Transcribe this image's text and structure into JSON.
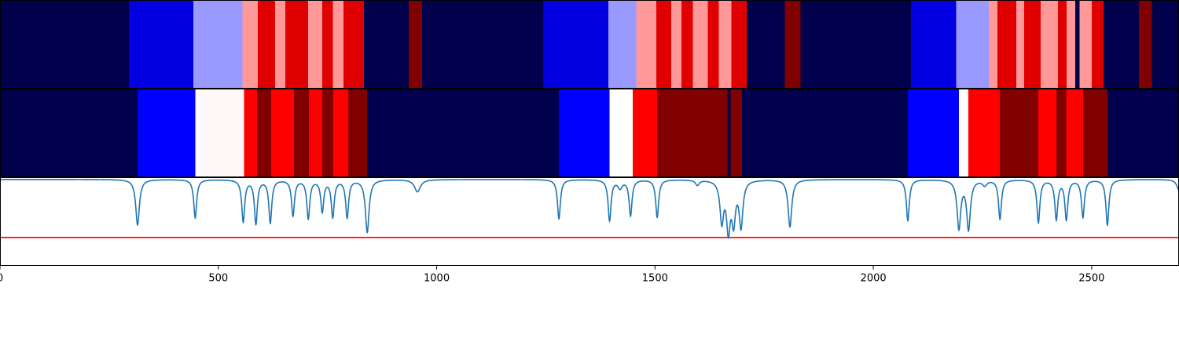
{
  "chart_data": [
    {
      "type": "heatmap",
      "xlim": [
        0,
        2700
      ],
      "segments": [
        {
          "start": 0,
          "end": 295,
          "color": "#00004c"
        },
        {
          "start": 295,
          "end": 443,
          "color": "#0000e0"
        },
        {
          "start": 443,
          "end": 555,
          "color": "#9999ff"
        },
        {
          "start": 555,
          "end": 590,
          "color": "#ff9999"
        },
        {
          "start": 590,
          "end": 630,
          "color": "#e00000"
        },
        {
          "start": 630,
          "end": 653,
          "color": "#ff9999"
        },
        {
          "start": 653,
          "end": 706,
          "color": "#e00000"
        },
        {
          "start": 706,
          "end": 738,
          "color": "#ff9999"
        },
        {
          "start": 738,
          "end": 762,
          "color": "#e00000"
        },
        {
          "start": 762,
          "end": 787,
          "color": "#ff9999"
        },
        {
          "start": 787,
          "end": 833,
          "color": "#e00000"
        },
        {
          "start": 833,
          "end": 936,
          "color": "#00004c"
        },
        {
          "start": 936,
          "end": 967,
          "color": "#800000"
        },
        {
          "start": 967,
          "end": 1244,
          "color": "#00004c"
        },
        {
          "start": 1244,
          "end": 1393,
          "color": "#0000e0"
        },
        {
          "start": 1393,
          "end": 1457,
          "color": "#9999ff"
        },
        {
          "start": 1457,
          "end": 1503,
          "color": "#ff9999"
        },
        {
          "start": 1503,
          "end": 1537,
          "color": "#e00000"
        },
        {
          "start": 1537,
          "end": 1561,
          "color": "#ff9999"
        },
        {
          "start": 1561,
          "end": 1587,
          "color": "#e00000"
        },
        {
          "start": 1587,
          "end": 1621,
          "color": "#ff9999"
        },
        {
          "start": 1621,
          "end": 1646,
          "color": "#e00000"
        },
        {
          "start": 1646,
          "end": 1675,
          "color": "#ff9999"
        },
        {
          "start": 1675,
          "end": 1710,
          "color": "#e00000"
        },
        {
          "start": 1710,
          "end": 1797,
          "color": "#00004c"
        },
        {
          "start": 1797,
          "end": 1833,
          "color": "#800000"
        },
        {
          "start": 1833,
          "end": 2086,
          "color": "#00004c"
        },
        {
          "start": 2086,
          "end": 2190,
          "color": "#0000e0"
        },
        {
          "start": 2190,
          "end": 2264,
          "color": "#9999ff"
        },
        {
          "start": 2264,
          "end": 2284,
          "color": "#ff9999"
        },
        {
          "start": 2284,
          "end": 2327,
          "color": "#e00000"
        },
        {
          "start": 2327,
          "end": 2345,
          "color": "#ff9999"
        },
        {
          "start": 2345,
          "end": 2383,
          "color": "#e00000"
        },
        {
          "start": 2383,
          "end": 2423,
          "color": "#ff9999"
        },
        {
          "start": 2423,
          "end": 2443,
          "color": "#e00000"
        },
        {
          "start": 2443,
          "end": 2462,
          "color": "#ff9999"
        },
        {
          "start": 2462,
          "end": 2472,
          "color": "#00004c"
        },
        {
          "start": 2472,
          "end": 2500,
          "color": "#ff9999"
        },
        {
          "start": 2500,
          "end": 2527,
          "color": "#e00000"
        },
        {
          "start": 2527,
          "end": 2608,
          "color": "#00004c"
        },
        {
          "start": 2608,
          "end": 2638,
          "color": "#800000"
        },
        {
          "start": 2638,
          "end": 2700,
          "color": "#00004c"
        }
      ]
    },
    {
      "type": "heatmap",
      "xlim": [
        0,
        2700
      ],
      "segments": [
        {
          "start": 0,
          "end": 315,
          "color": "#00004c"
        },
        {
          "start": 315,
          "end": 447,
          "color": "#0000ff"
        },
        {
          "start": 447,
          "end": 559,
          "color": "#fff8f8"
        },
        {
          "start": 559,
          "end": 589,
          "color": "#ff0000"
        },
        {
          "start": 589,
          "end": 621,
          "color": "#800000"
        },
        {
          "start": 621,
          "end": 673,
          "color": "#ff0000"
        },
        {
          "start": 673,
          "end": 707,
          "color": "#800000"
        },
        {
          "start": 707,
          "end": 738,
          "color": "#ff0000"
        },
        {
          "start": 738,
          "end": 763,
          "color": "#800000"
        },
        {
          "start": 763,
          "end": 797,
          "color": "#ff0000"
        },
        {
          "start": 797,
          "end": 841,
          "color": "#800000"
        },
        {
          "start": 841,
          "end": 1280,
          "color": "#00004c"
        },
        {
          "start": 1280,
          "end": 1396,
          "color": "#0000ff"
        },
        {
          "start": 1396,
          "end": 1449,
          "color": "#ffffff"
        },
        {
          "start": 1449,
          "end": 1505,
          "color": "#ff0000"
        },
        {
          "start": 1505,
          "end": 1666,
          "color": "#800000"
        },
        {
          "start": 1666,
          "end": 1673,
          "color": "#00004c"
        },
        {
          "start": 1673,
          "end": 1699,
          "color": "#800000"
        },
        {
          "start": 1699,
          "end": 2079,
          "color": "#00004c"
        },
        {
          "start": 2079,
          "end": 2196,
          "color": "#0000ff"
        },
        {
          "start": 2196,
          "end": 2218,
          "color": "#ffffff"
        },
        {
          "start": 2218,
          "end": 2290,
          "color": "#ff0000"
        },
        {
          "start": 2290,
          "end": 2378,
          "color": "#800000"
        },
        {
          "start": 2378,
          "end": 2419,
          "color": "#ff0000"
        },
        {
          "start": 2419,
          "end": 2442,
          "color": "#800000"
        },
        {
          "start": 2442,
          "end": 2480,
          "color": "#ff0000"
        },
        {
          "start": 2480,
          "end": 2536,
          "color": "#800000"
        },
        {
          "start": 2536,
          "end": 2700,
          "color": "#00004c"
        }
      ]
    },
    {
      "type": "line",
      "xlim": [
        0,
        2700
      ],
      "ylim": [
        0,
        1
      ],
      "xticks": [
        0,
        500,
        1000,
        1500,
        2000,
        2500
      ],
      "threshold": 0.32,
      "threshold_color": "#ff0000",
      "line_color": "#1f77b4",
      "baseline": 0.98,
      "dips": [
        {
          "x": 315,
          "depth": 0.52,
          "width": 5
        },
        {
          "x": 447,
          "depth": 0.44,
          "width": 4
        },
        {
          "x": 557,
          "depth": 0.48,
          "width": 4
        },
        {
          "x": 586,
          "depth": 0.5,
          "width": 4
        },
        {
          "x": 619,
          "depth": 0.49,
          "width": 4
        },
        {
          "x": 671,
          "depth": 0.41,
          "width": 4
        },
        {
          "x": 706,
          "depth": 0.44,
          "width": 4
        },
        {
          "x": 738,
          "depth": 0.36,
          "width": 4
        },
        {
          "x": 762,
          "depth": 0.42,
          "width": 4
        },
        {
          "x": 795,
          "depth": 0.43,
          "width": 4
        },
        {
          "x": 841,
          "depth": 0.6,
          "width": 5
        },
        {
          "x": 956,
          "depth": 0.14,
          "width": 8
        },
        {
          "x": 1280,
          "depth": 0.45,
          "width": 4
        },
        {
          "x": 1396,
          "depth": 0.47,
          "width": 4
        },
        {
          "x": 1420,
          "depth": 0.09,
          "width": 6
        },
        {
          "x": 1444,
          "depth": 0.41,
          "width": 4
        },
        {
          "x": 1505,
          "depth": 0.43,
          "width": 4
        },
        {
          "x": 1597,
          "depth": 0.06,
          "width": 5
        },
        {
          "x": 1653,
          "depth": 0.46,
          "width": 5
        },
        {
          "x": 1668,
          "depth": 0.54,
          "width": 5
        },
        {
          "x": 1680,
          "depth": 0.45,
          "width": 5
        },
        {
          "x": 1697,
          "depth": 0.52,
          "width": 5
        },
        {
          "x": 1809,
          "depth": 0.54,
          "width": 5
        },
        {
          "x": 2079,
          "depth": 0.47,
          "width": 4
        },
        {
          "x": 2196,
          "depth": 0.55,
          "width": 5
        },
        {
          "x": 2218,
          "depth": 0.56,
          "width": 5
        },
        {
          "x": 2255,
          "depth": 0.06,
          "width": 6
        },
        {
          "x": 2290,
          "depth": 0.45,
          "width": 4
        },
        {
          "x": 2378,
          "depth": 0.49,
          "width": 4
        },
        {
          "x": 2419,
          "depth": 0.45,
          "width": 4
        },
        {
          "x": 2442,
          "depth": 0.45,
          "width": 4
        },
        {
          "x": 2480,
          "depth": 0.43,
          "width": 4
        },
        {
          "x": 2536,
          "depth": 0.52,
          "width": 4
        },
        {
          "x": 2700,
          "depth": 0.12,
          "width": 6
        }
      ]
    }
  ]
}
